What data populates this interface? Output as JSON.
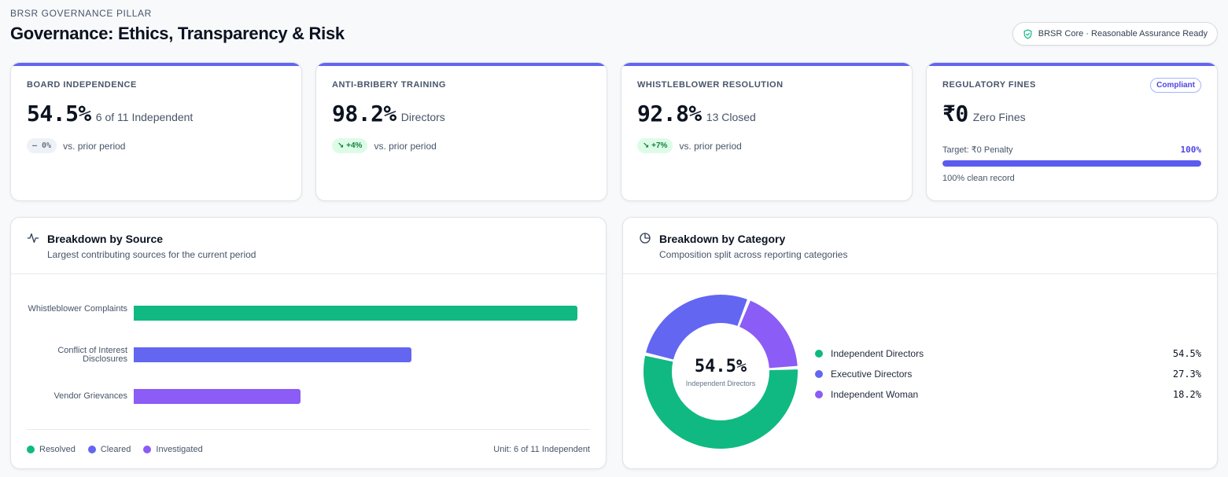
{
  "header": {
    "eyebrow": "BRSR GOVERNANCE PILLAR",
    "title": "Governance: Ethics, Transparency & Risk",
    "assurance_badge": "BRSR Core · Reasonable Assurance Ready"
  },
  "kpis": [
    {
      "label": "BOARD INDEPENDENCE",
      "value": "54.5%",
      "sub": "6 of 11 Independent",
      "delta": "— 0%",
      "delta_type": "neutral",
      "delta_caption": "vs. prior period"
    },
    {
      "label": "ANTI-BRIBERY TRAINING",
      "value": "98.2%",
      "sub": "Directors",
      "delta": "↘ +4%",
      "delta_type": "up",
      "delta_caption": "vs. prior period"
    },
    {
      "label": "WHISTLEBLOWER RESOLUTION",
      "value": "92.8%",
      "sub": "13 Closed",
      "delta": "↘ +7%",
      "delta_type": "up",
      "delta_caption": "vs. prior period"
    },
    {
      "label": "REGULATORY FINES",
      "value": "₹0",
      "sub": "Zero Fines",
      "badge": "Compliant",
      "target_label": "Target: ₹0 Penalty",
      "target_pct": "100%",
      "progress": 1.0,
      "footnote": "100% clean record"
    }
  ],
  "source_panel": {
    "title": "Breakdown by Source",
    "subtitle": "Largest contributing sources for the current period",
    "legend": [
      {
        "label": "Resolved",
        "color": "#10b981"
      },
      {
        "label": "Cleared",
        "color": "#6366f1"
      },
      {
        "label": "Investigated",
        "color": "#8b5cf6"
      }
    ],
    "unit": "Unit: 6 of 11 Independent"
  },
  "category_panel": {
    "title": "Breakdown by Category",
    "subtitle": "Composition split across reporting categories",
    "center_value": "54.5%",
    "center_caption": "Independent Directors"
  },
  "chart_data": [
    {
      "type": "bar",
      "orientation": "horizontal",
      "categories": [
        "Whistleblower Complaints",
        "Conflict of Interest Disclosures",
        "Vendor Grievances"
      ],
      "values": [
        100,
        62.5,
        37.5
      ],
      "colors": [
        "#10b981",
        "#6366f1",
        "#8b5cf6"
      ]
    },
    {
      "type": "pie",
      "donut": true,
      "categories": [
        "Independent Directors",
        "Executive Directors",
        "Independent Woman"
      ],
      "values": [
        54.5,
        27.3,
        18.2
      ],
      "labels": [
        "54.5%",
        "27.3%",
        "18.2%"
      ],
      "colors": [
        "#10b981",
        "#6366f1",
        "#8b5cf6"
      ]
    }
  ]
}
